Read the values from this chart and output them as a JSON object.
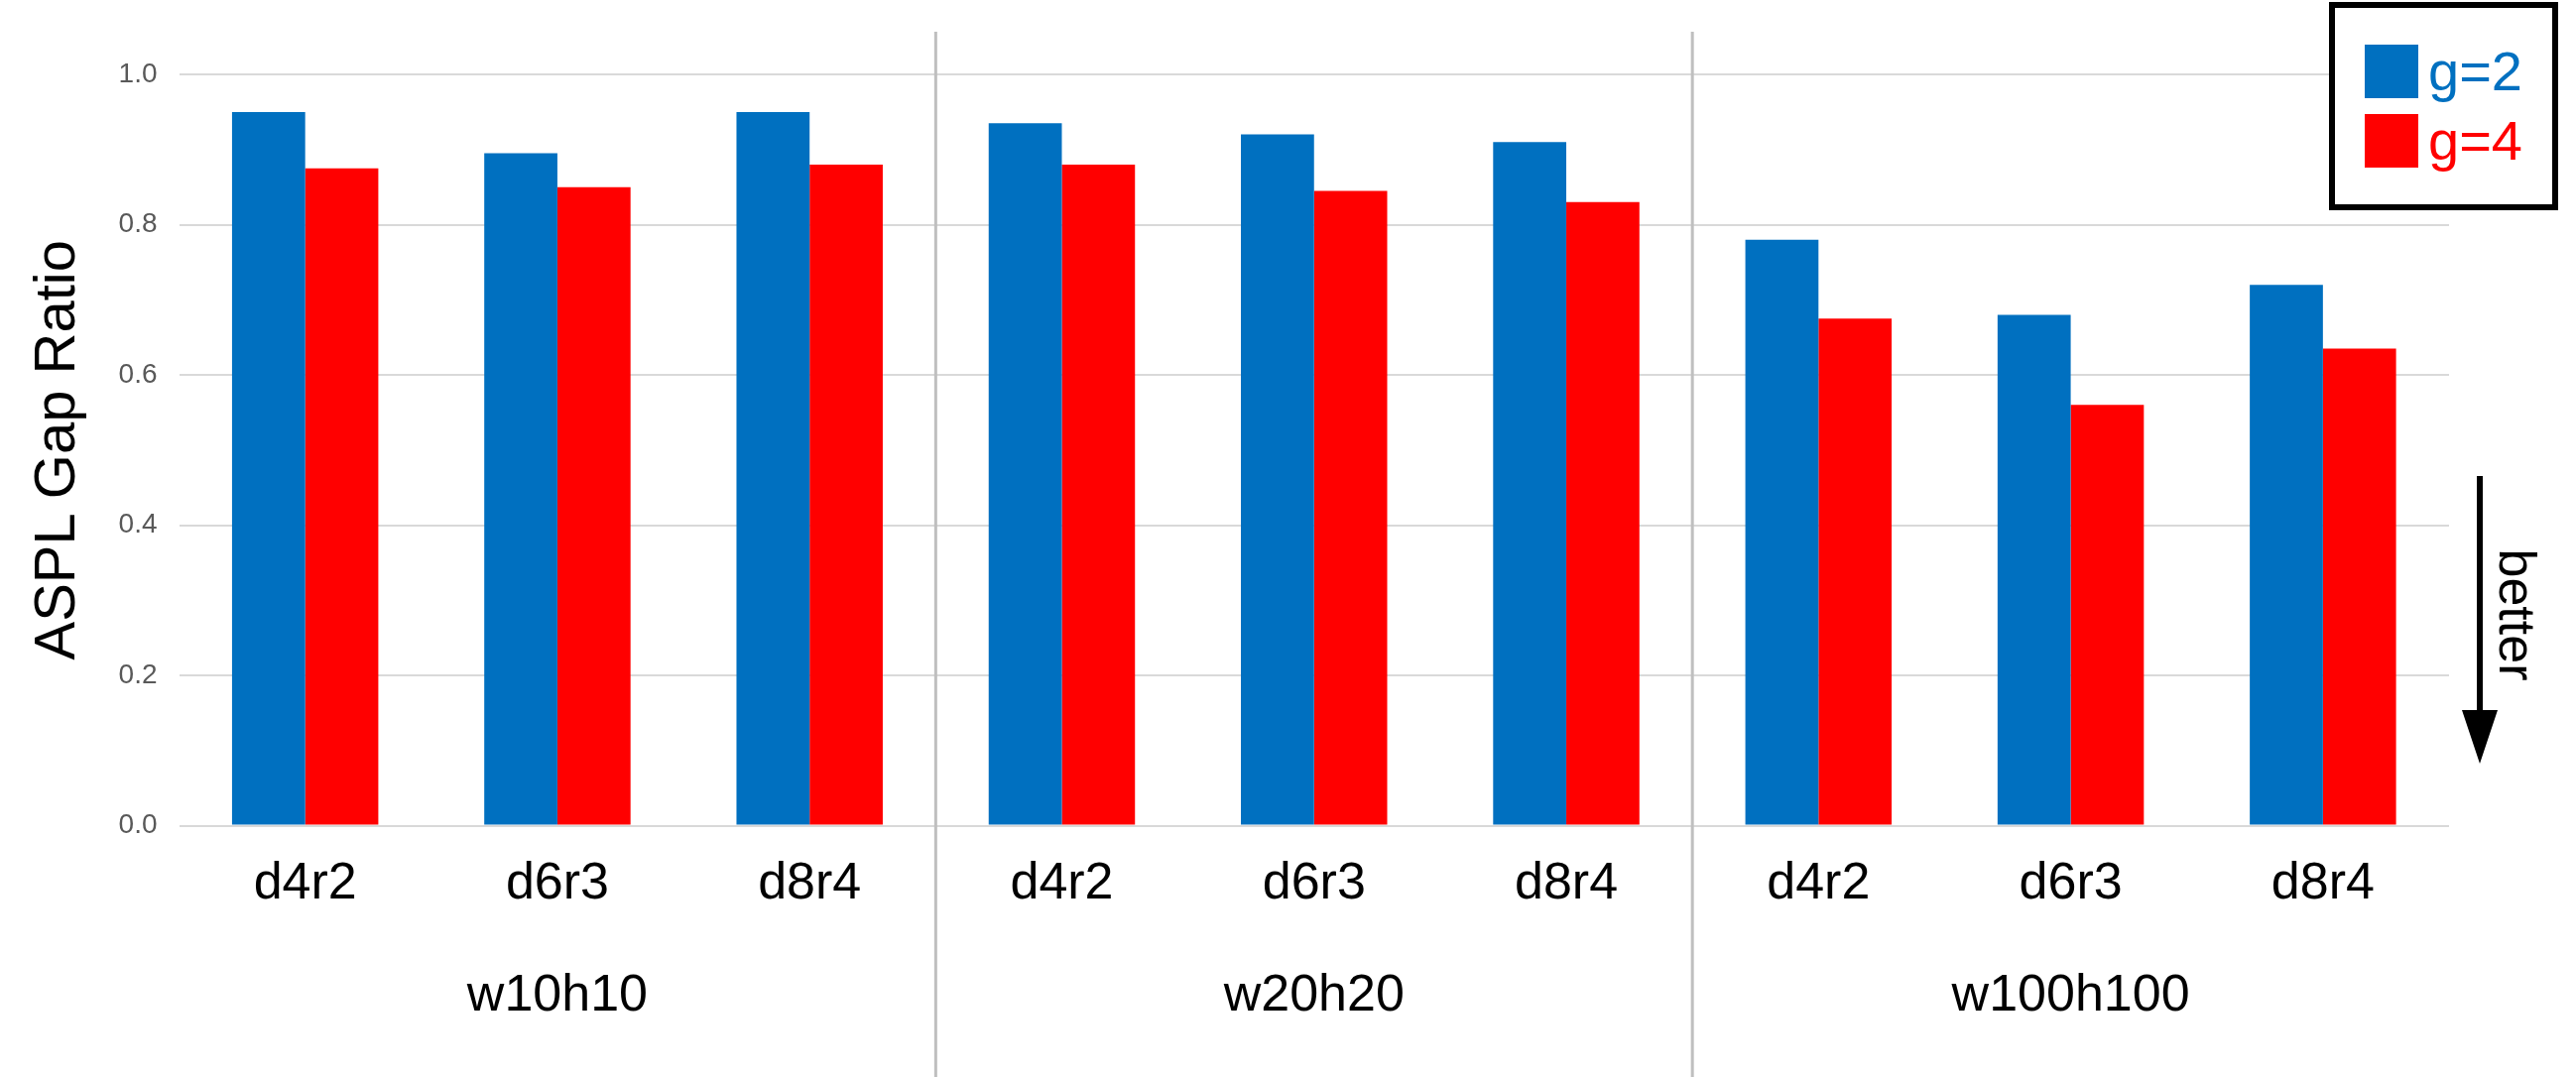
{
  "chart_data": {
    "type": "bar",
    "ylabel": "ASPL Gap Ratio",
    "categories": [
      "d4r2",
      "d6r3",
      "d8r4",
      "d4r2",
      "d6r3",
      "d8r4",
      "d4r2",
      "d6r3",
      "d8r4"
    ],
    "series": [
      {
        "name": "g=2",
        "color": "#0070c0",
        "values": [
          0.95,
          0.895,
          0.95,
          0.935,
          0.92,
          0.91,
          0.78,
          0.68,
          0.72
        ]
      },
      {
        "name": "g=4",
        "color": "#ff0000",
        "values": [
          0.875,
          0.85,
          0.88,
          0.88,
          0.845,
          0.83,
          0.675,
          0.56,
          0.635
        ]
      }
    ],
    "ylim": [
      0,
      1
    ],
    "yticks": [
      {
        "value": 0,
        "label": "0.0"
      },
      {
        "value": 0.2,
        "label": "0.2"
      },
      {
        "value": 0.4,
        "label": "0.4"
      },
      {
        "value": 0.6,
        "label": "0.6"
      },
      {
        "value": 0.8,
        "label": "0.8"
      },
      {
        "value": 1,
        "label": "1.0"
      }
    ],
    "grid": "y",
    "legend": "top right",
    "annotations": [
      "w10h10",
      "w20h20",
      "w100h100",
      "better"
    ]
  }
}
